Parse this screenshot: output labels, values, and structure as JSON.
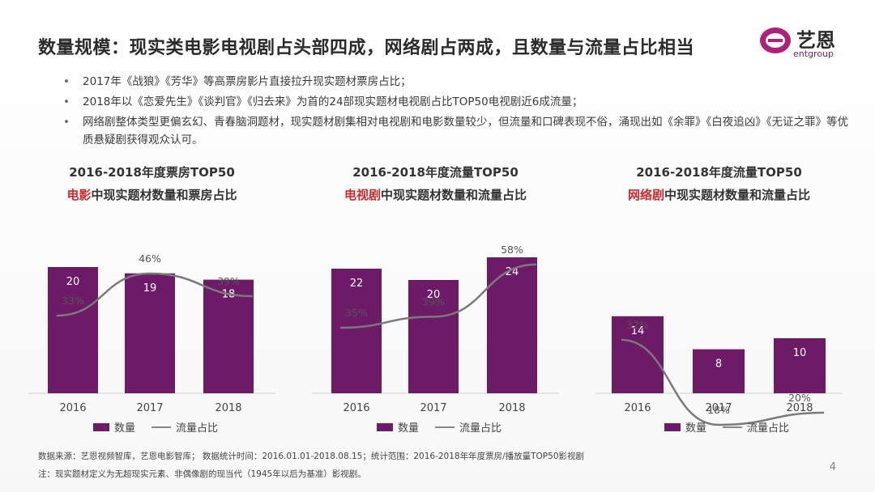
{
  "title": "数量规模：现实类电影电视剧占头部四成，网络剧占两成，且数量与流量占比相当",
  "logo": {
    "name": "艺恩",
    "sub": "entgroup"
  },
  "bullets": [
    "2017年《战狼》《芳华》等高票房影片直接拉升现实题材票房占比；",
    "2018年以《恋爱先生》《谈判官》《归去来》为首的24部现实题材电视剧占比TOP50电视剧近6成流量；",
    "网络剧整体类型更偏玄幻、青春脑洞题材，现实题材剧集相对电视剧和电影数量较少，但流量和口碑表现不俗，涌现出如《余罪》《白夜追凶》《无证之罪》等优质悬疑剧获得观众认可。"
  ],
  "legend": {
    "bar": "数量",
    "line": "流量占比"
  },
  "chart_data": [
    {
      "type": "bar",
      "title": "2016-2018年度票房TOP50",
      "subtitle_highlight": "电影",
      "subtitle_rest": "中现实题材数量和票房占比",
      "categories": [
        "2016",
        "2017",
        "2018"
      ],
      "series": [
        {
          "name": "数量",
          "values": [
            20,
            19,
            18
          ]
        },
        {
          "name": "流量占比",
          "values": [
            33,
            46,
            39
          ],
          "unit": "%"
        }
      ],
      "bar_color": "#6d1b67",
      "line_color": "#7a7a7a"
    },
    {
      "type": "bar",
      "title": "2016-2018年度流量TOP50",
      "subtitle_highlight": "电视剧",
      "subtitle_rest": "中现实题材数量和流量占比",
      "categories": [
        "2016",
        "2017",
        "2018"
      ],
      "series": [
        {
          "name": "数量",
          "values": [
            22,
            20,
            24
          ]
        },
        {
          "name": "流量占比",
          "values": [
            35,
            39,
            58
          ],
          "unit": "%"
        }
      ],
      "bar_color": "#6d1b67",
      "line_color": "#7a7a7a"
    },
    {
      "type": "bar",
      "title": "2016-2018年度流量TOP50",
      "subtitle_highlight": "网络剧",
      "subtitle_rest": "中现实题材数量和流量占比",
      "categories": [
        "2016",
        "2017",
        "2018"
      ],
      "series": [
        {
          "name": "数量",
          "values": [
            14,
            8,
            10
          ]
        },
        {
          "name": "流量占比",
          "values": [
            32,
            18,
            20
          ],
          "unit": "%"
        }
      ],
      "bar_color": "#6d1b67",
      "line_color": "#7a7a7a"
    }
  ],
  "footer": {
    "source": "数据来源：艺恩视频智库，艺恩电影智库；  数据统计时间：2016.01.01-2018.08.15；统计范围：2016-2018年年度票房/播放量TOP50影视剧",
    "note": "注：现实题材定义为无超现实元素、非偶像剧的现当代（1945年以后为基准）影视剧。"
  },
  "page_number": "4"
}
